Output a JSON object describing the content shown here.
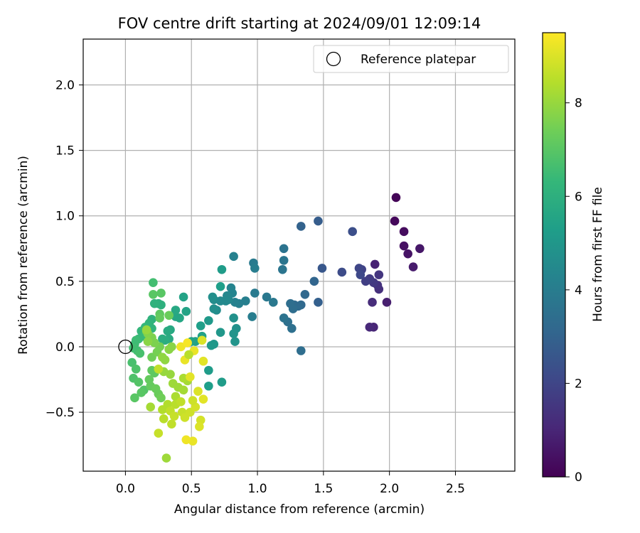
{
  "chart_data": {
    "type": "scatter",
    "title": "FOV centre drift starting at 2024/09/01 12:09:14",
    "xlabel": "Angular distance from reference (arcmin)",
    "ylabel": "Rotation from reference (arcmin)",
    "xlim": [
      -0.32,
      2.95
    ],
    "ylim": [
      -0.95,
      2.35
    ],
    "x_ticks": [
      0.0,
      0.5,
      1.0,
      1.5,
      2.0,
      2.5
    ],
    "x_tick_labels": [
      "0.0",
      "0.5",
      "1.0",
      "1.5",
      "2.0",
      "2.5"
    ],
    "y_ticks": [
      -0.5,
      0.0,
      0.5,
      1.0,
      1.5,
      2.0
    ],
    "y_tick_labels": [
      "−0.5",
      "0.0",
      "0.5",
      "1.0",
      "1.5",
      "2.0"
    ],
    "grid": true,
    "legend": {
      "placement": "top-right",
      "entries": [
        {
          "label": "Reference platepar",
          "marker": "open-circle"
        }
      ]
    },
    "reference_point": {
      "x": 0.0,
      "y": 0.0
    },
    "colorbar": {
      "label": "Hours from first FF file",
      "colormap": "viridis",
      "range": [
        0,
        9.5
      ],
      "ticks": [
        0,
        2,
        4,
        6,
        8
      ],
      "tick_labels": [
        "0",
        "2",
        "4",
        "6",
        "8"
      ]
    },
    "colormap_stops": [
      "#440154",
      "#482878",
      "#3e4989",
      "#31688e",
      "#26828e",
      "#1f9e89",
      "#35b779",
      "#6ece58",
      "#b5de2b",
      "#fde725"
    ],
    "points": [
      [
        2.05,
        1.14,
        0.1
      ],
      [
        2.04,
        0.96,
        0.2
      ],
      [
        2.11,
        0.88,
        0.3
      ],
      [
        2.11,
        0.77,
        0.4
      ],
      [
        2.14,
        0.71,
        0.5
      ],
      [
        2.23,
        0.75,
        0.6
      ],
      [
        2.18,
        0.61,
        0.7
      ],
      [
        1.98,
        0.34,
        0.8
      ],
      [
        1.89,
        0.63,
        0.9
      ],
      [
        1.88,
        0.15,
        1.0
      ],
      [
        1.85,
        0.15,
        1.1
      ],
      [
        1.87,
        0.34,
        1.2
      ],
      [
        1.92,
        0.44,
        1.3
      ],
      [
        1.91,
        0.47,
        1.4
      ],
      [
        1.92,
        0.55,
        1.5
      ],
      [
        1.88,
        0.49,
        1.6
      ],
      [
        1.85,
        0.52,
        1.7
      ],
      [
        1.82,
        0.5,
        1.8
      ],
      [
        1.79,
        0.59,
        1.9
      ],
      [
        1.77,
        0.6,
        2.0
      ],
      [
        1.78,
        0.55,
        2.1
      ],
      [
        1.64,
        0.57,
        2.2
      ],
      [
        1.72,
        0.88,
        2.3
      ],
      [
        1.49,
        0.6,
        2.6
      ],
      [
        1.46,
        0.96,
        2.8
      ],
      [
        1.46,
        0.34,
        2.9
      ],
      [
        1.33,
        0.92,
        3.0
      ],
      [
        1.43,
        0.5,
        3.1
      ],
      [
        1.36,
        0.4,
        3.2
      ],
      [
        1.33,
        0.32,
        3.2
      ],
      [
        1.31,
        0.31,
        3.3
      ],
      [
        1.28,
        0.32,
        3.3
      ],
      [
        1.27,
        0.29,
        3.4
      ],
      [
        1.25,
        0.33,
        3.4
      ],
      [
        1.33,
        -0.03,
        3.4
      ],
      [
        1.26,
        0.14,
        3.5
      ],
      [
        1.23,
        0.19,
        3.5
      ],
      [
        1.2,
        0.22,
        3.6
      ],
      [
        1.2,
        0.75,
        3.6
      ],
      [
        1.2,
        0.66,
        3.7
      ],
      [
        1.19,
        0.59,
        3.7
      ],
      [
        1.12,
        0.34,
        3.8
      ],
      [
        1.07,
        0.38,
        3.8
      ],
      [
        0.98,
        0.41,
        3.9
      ],
      [
        0.97,
        0.64,
        3.9
      ],
      [
        0.98,
        0.6,
        4.0
      ],
      [
        0.96,
        0.23,
        4.0
      ],
      [
        0.91,
        0.35,
        4.1
      ],
      [
        0.86,
        0.33,
        4.1
      ],
      [
        0.83,
        0.34,
        4.2
      ],
      [
        0.82,
        0.69,
        4.2
      ],
      [
        0.81,
        0.41,
        4.3
      ],
      [
        0.8,
        0.45,
        4.3
      ],
      [
        0.78,
        0.36,
        4.4
      ],
      [
        0.77,
        0.39,
        4.4
      ],
      [
        0.76,
        0.35,
        4.5
      ],
      [
        0.72,
        0.35,
        4.5
      ],
      [
        0.69,
        0.28,
        4.6
      ],
      [
        0.67,
        0.36,
        4.6
      ],
      [
        0.67,
        0.29,
        4.7
      ],
      [
        0.66,
        0.38,
        4.7
      ],
      [
        0.82,
        0.22,
        4.8
      ],
      [
        0.84,
        0.14,
        4.8
      ],
      [
        0.82,
        0.1,
        4.9
      ],
      [
        0.83,
        0.04,
        4.9
      ],
      [
        0.72,
        0.11,
        5.0
      ],
      [
        0.67,
        0.02,
        5.0
      ],
      [
        0.65,
        0.01,
        5.1
      ],
      [
        0.63,
        0.2,
        5.1
      ],
      [
        0.63,
        -0.18,
        5.2
      ],
      [
        0.73,
        -0.27,
        5.2
      ],
      [
        0.63,
        -0.3,
        5.3
      ],
      [
        0.57,
        0.16,
        5.3
      ],
      [
        0.58,
        0.08,
        5.4
      ],
      [
        0.53,
        0.04,
        5.4
      ],
      [
        0.5,
        0.04,
        5.5
      ],
      [
        0.73,
        0.59,
        5.2
      ],
      [
        0.72,
        0.46,
        5.3
      ],
      [
        0.46,
        0.27,
        5.5
      ],
      [
        0.44,
        0.38,
        5.5
      ],
      [
        0.41,
        0.22,
        5.6
      ],
      [
        0.38,
        0.23,
        5.6
      ],
      [
        0.38,
        0.28,
        5.7
      ],
      [
        0.34,
        0.13,
        5.7
      ],
      [
        0.32,
        0.12,
        5.8
      ],
      [
        0.33,
        0.06,
        5.8
      ],
      [
        0.3,
        0.05,
        5.9
      ],
      [
        0.28,
        0.06,
        5.9
      ],
      [
        0.27,
        0.32,
        6.0
      ],
      [
        0.25,
        0.33,
        6.0
      ],
      [
        0.22,
        0.33,
        6.1
      ],
      [
        0.2,
        0.21,
        6.1
      ],
      [
        0.18,
        0.18,
        6.2
      ],
      [
        0.2,
        0.14,
        6.2
      ],
      [
        0.15,
        0.15,
        6.3
      ],
      [
        0.12,
        0.12,
        6.3
      ],
      [
        0.14,
        0.08,
        6.4
      ],
      [
        0.1,
        0.06,
        6.4
      ],
      [
        0.08,
        0.05,
        6.5
      ],
      [
        0.07,
        0.02,
        6.5
      ],
      [
        0.06,
        -0.01,
        6.6
      ],
      [
        0.09,
        -0.03,
        6.6
      ],
      [
        0.11,
        -0.05,
        6.7
      ],
      [
        0.05,
        -0.12,
        6.7
      ],
      [
        0.08,
        -0.17,
        6.8
      ],
      [
        0.06,
        -0.24,
        6.8
      ],
      [
        0.1,
        -0.27,
        6.9
      ],
      [
        0.14,
        -0.33,
        6.9
      ],
      [
        0.12,
        -0.35,
        7.0
      ],
      [
        0.07,
        -0.39,
        7.0
      ],
      [
        0.2,
        -0.18,
        7.1
      ],
      [
        0.22,
        -0.2,
        7.1
      ],
      [
        0.18,
        -0.25,
        7.2
      ],
      [
        0.19,
        -0.3,
        7.2
      ],
      [
        0.23,
        -0.32,
        7.3
      ],
      [
        0.25,
        -0.36,
        7.3
      ],
      [
        0.27,
        -0.39,
        7.4
      ],
      [
        0.2,
        -0.08,
        7.4
      ],
      [
        0.24,
        -0.04,
        7.5
      ],
      [
        0.26,
        0.0,
        7.5
      ],
      [
        0.22,
        0.03,
        7.6
      ],
      [
        0.2,
        0.07,
        7.6
      ],
      [
        0.17,
        0.1,
        7.7
      ],
      [
        0.16,
        0.12,
        7.7
      ],
      [
        0.21,
        0.4,
        7.0
      ],
      [
        0.27,
        0.41,
        7.0
      ],
      [
        0.21,
        0.49,
        6.6
      ],
      [
        0.26,
        0.25,
        7.1
      ],
      [
        0.26,
        0.22,
        7.2
      ],
      [
        0.33,
        0.24,
        7.3
      ],
      [
        0.35,
        0.0,
        7.8
      ],
      [
        0.33,
        -0.02,
        7.8
      ],
      [
        0.28,
        -0.08,
        7.9
      ],
      [
        0.3,
        -0.1,
        7.9
      ],
      [
        0.29,
        -0.19,
        8.0
      ],
      [
        0.34,
        -0.21,
        8.0
      ],
      [
        0.36,
        -0.28,
        8.1
      ],
      [
        0.4,
        -0.31,
        8.1
      ],
      [
        0.44,
        -0.33,
        8.2
      ],
      [
        0.47,
        -0.26,
        8.2
      ],
      [
        0.44,
        -0.24,
        8.3
      ],
      [
        0.38,
        -0.38,
        8.3
      ],
      [
        0.32,
        -0.44,
        8.4
      ],
      [
        0.28,
        -0.48,
        8.4
      ],
      [
        0.29,
        -0.55,
        8.5
      ],
      [
        0.38,
        -0.44,
        8.5
      ],
      [
        0.34,
        -0.49,
        8.6
      ],
      [
        0.35,
        -0.59,
        8.6
      ],
      [
        0.37,
        -0.53,
        8.7
      ],
      [
        0.43,
        -0.5,
        8.7
      ],
      [
        0.45,
        -0.54,
        8.8
      ],
      [
        0.49,
        -0.5,
        8.8
      ],
      [
        0.53,
        -0.46,
        8.9
      ],
      [
        0.57,
        -0.56,
        8.9
      ],
      [
        0.56,
        -0.61,
        9.0
      ],
      [
        0.55,
        -0.34,
        9.0
      ],
      [
        0.59,
        -0.4,
        9.1
      ],
      [
        0.49,
        -0.23,
        9.1
      ],
      [
        0.45,
        -0.1,
        9.2
      ],
      [
        0.51,
        -0.72,
        9.2
      ],
      [
        0.46,
        -0.71,
        9.3
      ],
      [
        0.31,
        -0.85,
        8.1
      ],
      [
        0.25,
        -0.66,
        8.7
      ],
      [
        0.19,
        -0.46,
        8.2
      ],
      [
        0.58,
        0.05,
        9.0
      ],
      [
        0.59,
        -0.11,
        9.1
      ],
      [
        0.52,
        -0.03,
        9.2
      ],
      [
        0.42,
        0.0,
        9.3
      ],
      [
        0.47,
        0.03,
        9.4
      ],
      [
        0.25,
        -0.17,
        8.6
      ],
      [
        0.48,
        -0.06,
        8.5
      ],
      [
        0.16,
        0.13,
        8.0
      ],
      [
        0.17,
        0.04,
        7.8
      ],
      [
        0.42,
        -0.42,
        8.6
      ],
      [
        0.51,
        -0.41,
        8.8
      ]
    ]
  }
}
